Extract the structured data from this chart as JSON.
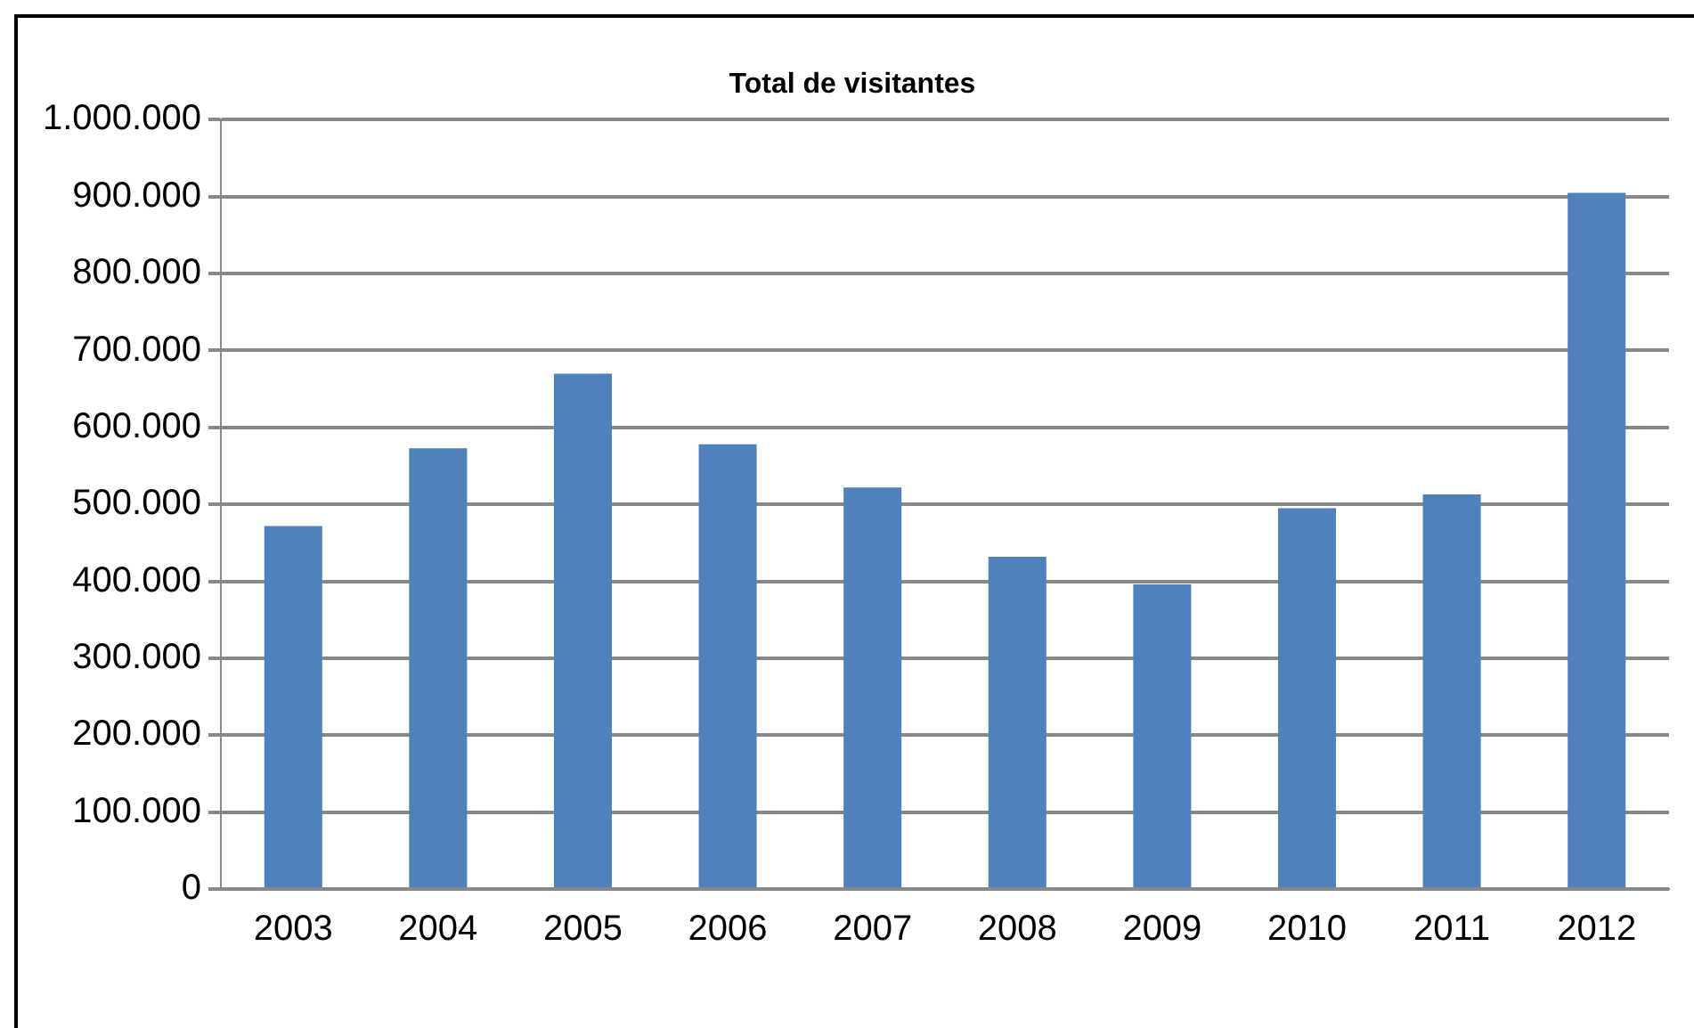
{
  "chart_data": {
    "type": "bar",
    "title": "Total de visitantes",
    "categories": [
      "2003",
      "2004",
      "2005",
      "2006",
      "2007",
      "2008",
      "2009",
      "2010",
      "2011",
      "2012"
    ],
    "values": [
      472000,
      573000,
      670000,
      578000,
      522000,
      432000,
      396000,
      495000,
      513000,
      905000
    ],
    "color": "#4f81bd",
    "ylim": [
      0,
      1000000
    ],
    "yticks": [
      {
        "value": 0,
        "label": "0"
      },
      {
        "value": 100000,
        "label": "100.000"
      },
      {
        "value": 200000,
        "label": "200.000"
      },
      {
        "value": 300000,
        "label": "300.000"
      },
      {
        "value": 400000,
        "label": "400.000"
      },
      {
        "value": 500000,
        "label": "500.000"
      },
      {
        "value": 600000,
        "label": "600.000"
      },
      {
        "value": 700000,
        "label": "700.000"
      },
      {
        "value": 800000,
        "label": "800.000"
      },
      {
        "value": 900000,
        "label": "900.000"
      },
      {
        "value": 1000000,
        "label": "1.000.000"
      }
    ],
    "grid": "y",
    "legend": false
  }
}
